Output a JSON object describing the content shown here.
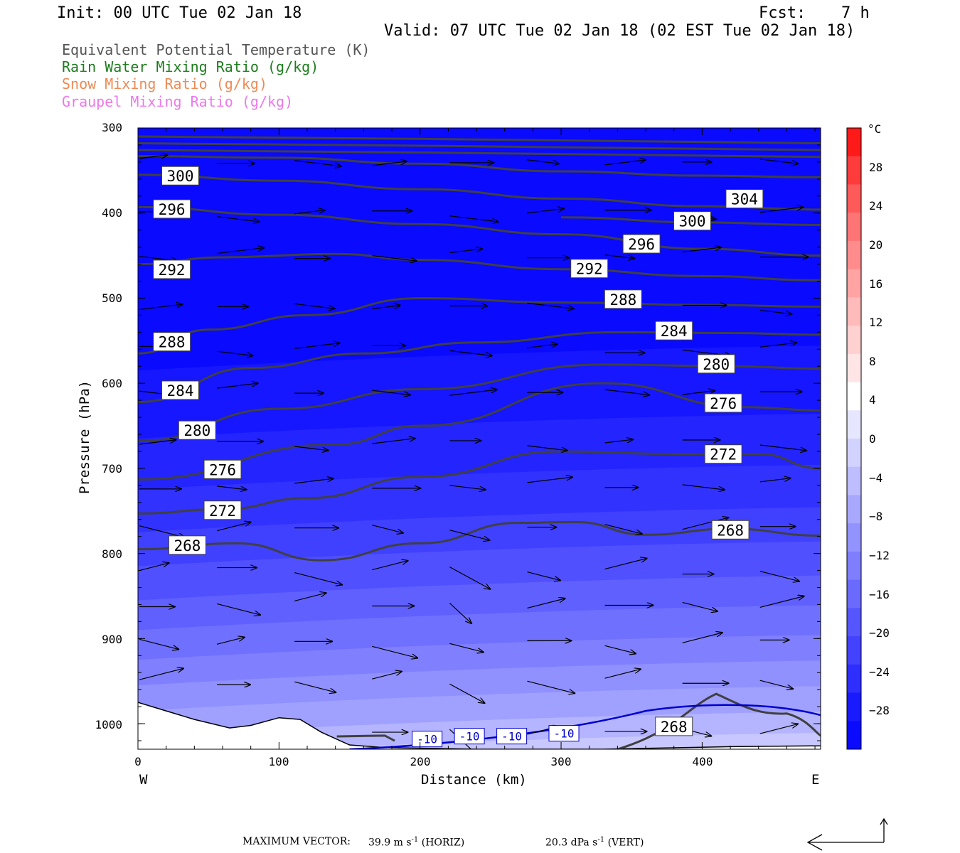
{
  "header": {
    "init": "Init: 00 UTC Tue 02 Jan 18",
    "fcst_label": "Fcst:",
    "fcst_value": "7 h",
    "valid": "Valid: 07 UTC Tue 02 Jan 18 (02 EST Tue 02 Jan 18)"
  },
  "legend": [
    {
      "label": "Equivalent Potential Temperature (K)",
      "color": "#555555"
    },
    {
      "label": "Rain Water Mixing Ratio (g/kg)",
      "color": "#1e7d1e"
    },
    {
      "label": "Snow Mixing Ratio (g/kg)",
      "color": "#ee8a55"
    },
    {
      "label": "Graupel Mixing Ratio (g/kg)",
      "color": "#ee77ee"
    }
  ],
  "axes": {
    "ylabel": "Pressure (hPa)",
    "xlabel": "Distance (km)",
    "west": "W",
    "east": "E",
    "colorbar_unit": "°C"
  },
  "footer": {
    "max_vector_label": "MAXIMUM VECTOR:",
    "horiz_value": "39.9 m s",
    "horiz_unit": "(HORIZ)",
    "vert_value": "20.3 dPa s",
    "vert_unit": "(VERT)",
    "exp": "-1"
  },
  "chart_data": {
    "type": "cross-section",
    "x": {
      "label": "Distance (km)",
      "range": [
        0,
        484
      ],
      "ticks": [
        0,
        100,
        200,
        300,
        400
      ]
    },
    "y": {
      "label": "Pressure (hPa)",
      "range": [
        300,
        1030
      ],
      "ticks": [
        300,
        400,
        500,
        600,
        700,
        800,
        900,
        1000
      ],
      "inverted": true
    },
    "colorbar": {
      "unit": "°C",
      "ticks": [
        28,
        24,
        20,
        16,
        12,
        8,
        4,
        0,
        -4,
        -8,
        -12,
        -16,
        -20,
        -24,
        -28
      ],
      "colors": [
        "#ff1a1a",
        "#ff3b3b",
        "#ff5a5a",
        "#ff7474",
        "#ff8c8c",
        "#ffa3a3",
        "#ffbaba",
        "#ffd0d0",
        "#ffe5e5",
        "#ffffff",
        "#e6e6ff",
        "#d2d2ff",
        "#bdbdff",
        "#a8a8ff",
        "#9393ff",
        "#7e7eff",
        "#6a6aff",
        "#5656ff",
        "#4242ff",
        "#2e2eff",
        "#1a1aff",
        "#0a0aff"
      ]
    },
    "theta_e_contours": [
      {
        "label": "304",
        "label_x": 430,
        "label_p": 384,
        "points": [
          [
            0,
            333
          ],
          [
            100,
            335
          ],
          [
            200,
            342
          ],
          [
            300,
            351
          ],
          [
            400,
            356
          ],
          [
            484,
            358
          ]
        ]
      },
      {
        "label": "300",
        "label_x": 30,
        "label_p": 357,
        "points": [
          [
            0,
            355
          ],
          [
            100,
            362
          ],
          [
            200,
            372
          ],
          [
            300,
            383
          ],
          [
            400,
            392
          ],
          [
            484,
            396
          ]
        ]
      },
      {
        "label": "300",
        "label_x": 393,
        "label_p": 410,
        "points": [
          [
            300,
            405
          ],
          [
            400,
            411
          ],
          [
            484,
            414
          ]
        ]
      },
      {
        "label": "296",
        "label_x": 24,
        "label_p": 396,
        "points": [
          [
            0,
            393
          ],
          [
            100,
            402
          ],
          [
            200,
            413
          ],
          [
            300,
            425
          ],
          [
            400,
            442
          ],
          [
            484,
            450
          ]
        ]
      },
      {
        "label": "296",
        "label_x": 357,
        "label_p": 437,
        "points": []
      },
      {
        "label": "292",
        "label_x": 24,
        "label_p": 467,
        "points": [
          [
            0,
            460
          ],
          [
            60,
            452
          ],
          [
            140,
            448
          ],
          [
            200,
            455
          ],
          [
            300,
            466
          ],
          [
            400,
            474
          ],
          [
            484,
            479
          ]
        ]
      },
      {
        "label": "292",
        "label_x": 320,
        "label_p": 466,
        "points": []
      },
      {
        "label": "288",
        "label_x": 24,
        "label_p": 552,
        "points": [
          [
            0,
            565
          ],
          [
            50,
            537
          ],
          [
            120,
            520
          ],
          [
            200,
            500
          ],
          [
            300,
            505
          ],
          [
            400,
            508
          ],
          [
            484,
            510
          ]
        ]
      },
      {
        "label": "288",
        "label_x": 344,
        "label_p": 502,
        "points": []
      },
      {
        "label": "284",
        "label_x": 380,
        "label_p": 539,
        "points": [
          [
            0,
            622
          ],
          [
            80,
            582
          ],
          [
            160,
            565
          ],
          [
            240,
            552
          ],
          [
            340,
            540
          ],
          [
            420,
            541
          ],
          [
            484,
            543
          ]
        ]
      },
      {
        "label": "284",
        "label_x": 30,
        "label_p": 609,
        "points": []
      },
      {
        "label": "280",
        "label_x": 410,
        "label_p": 578,
        "points": [
          [
            0,
            668
          ],
          [
            100,
            630
          ],
          [
            200,
            607
          ],
          [
            330,
            578
          ],
          [
            420,
            580
          ],
          [
            484,
            583
          ]
        ]
      },
      {
        "label": "280",
        "label_x": 42,
        "label_p": 656,
        "points": []
      },
      {
        "label": "276",
        "label_x": 415,
        "label_p": 624,
        "points": [
          [
            0,
            713
          ],
          [
            140,
            672
          ],
          [
            200,
            650
          ],
          [
            330,
            600
          ],
          [
            430,
            628
          ],
          [
            484,
            632
          ]
        ]
      },
      {
        "label": "276",
        "label_x": 60,
        "label_p": 702,
        "points": []
      },
      {
        "label": "272",
        "label_x": 415,
        "label_p": 684,
        "points": [
          [
            0,
            753
          ],
          [
            60,
            748
          ],
          [
            120,
            735
          ],
          [
            200,
            710
          ],
          [
            300,
            680
          ],
          [
            380,
            683
          ],
          [
            440,
            683
          ],
          [
            484,
            700
          ]
        ]
      },
      {
        "label": "272",
        "label_x": 60,
        "label_p": 750,
        "points": []
      },
      {
        "label": "268",
        "label_x": 420,
        "label_p": 773,
        "points": [
          [
            0,
            795
          ],
          [
            70,
            788
          ],
          [
            130,
            808
          ],
          [
            200,
            788
          ],
          [
            270,
            764
          ],
          [
            310,
            763
          ],
          [
            360,
            778
          ],
          [
            420,
            771
          ],
          [
            484,
            779
          ]
        ]
      },
      {
        "label": "268",
        "label_x": 35,
        "label_p": 791,
        "points": []
      },
      {
        "label": "268",
        "label_x": 380,
        "label_p": 1004,
        "points": []
      }
    ],
    "isotherm_labels": [
      {
        "label": "-10",
        "x": 205
      },
      {
        "label": "-10",
        "x": 235
      },
      {
        "label": "-10",
        "x": 265
      },
      {
        "label": "-10",
        "x": 302
      }
    ]
  }
}
